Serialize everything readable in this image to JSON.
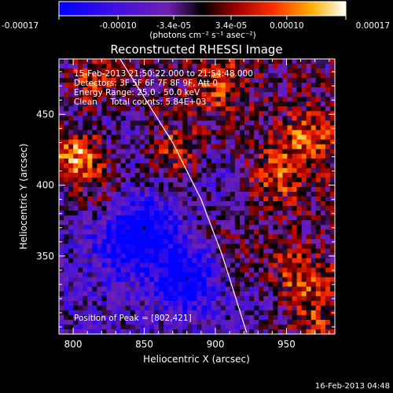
{
  "colorbar": {
    "tick_labels": [
      "-0.00017",
      "-0.00010",
      "-3.4e-05",
      "3.4e-05",
      "0.00010",
      "0.00017"
    ],
    "unit_label": "(photons cm⁻² s⁻¹ asec⁻²)",
    "range": [
      -0.00017,
      0.00017
    ]
  },
  "chart_data": {
    "type": "heatmap",
    "title": "Reconstructed RHESSI Image",
    "xlabel": "Heliocentric X (arcsec)",
    "ylabel": "Heliocentric Y (arcsec)",
    "xlim": [
      790,
      984
    ],
    "ylim": [
      295,
      489
    ],
    "x_ticks": [
      800,
      850,
      900,
      950
    ],
    "y_ticks": [
      350,
      400,
      450
    ],
    "annotations": [
      "15-Feb-2013 21:50:22.000 to 21:54:48.000",
      "Detectors: 3F 5F 6F 7F 8F 9F, Att 0",
      "Energy Range: 25.0 - 50.0 keV",
      "Clean     Total counts: 5.84E+03"
    ],
    "peak_label": "Position of Peak = [802,421]",
    "peak_position": [
      802,
      421
    ],
    "limb_curve": [
      [
        833,
        489
      ],
      [
        870,
        430
      ],
      [
        890,
        390
      ],
      [
        905,
        350
      ],
      [
        922,
        296
      ]
    ],
    "bright_regions": [
      {
        "x": 802,
        "y": 421,
        "level": 0.00017
      },
      {
        "x": 813,
        "y": 473,
        "level": 0.00012
      },
      {
        "x": 868,
        "y": 420,
        "level": 8e-05
      },
      {
        "x": 965,
        "y": 432,
        "level": 0.0001
      },
      {
        "x": 942,
        "y": 405,
        "level": 8e-05
      },
      {
        "x": 902,
        "y": 470,
        "level": 7e-05
      },
      {
        "x": 958,
        "y": 335,
        "level": 8e-05
      },
      {
        "x": 972,
        "y": 305,
        "level": 6e-05
      },
      {
        "x": 820,
        "y": 395,
        "level": 6e-05
      }
    ],
    "dark_regions": [
      {
        "x": 850,
        "y": 370,
        "level": -0.00012
      },
      {
        "x": 880,
        "y": 335,
        "level": -0.00014
      },
      {
        "x": 835,
        "y": 355,
        "level": -8e-05
      },
      {
        "x": 900,
        "y": 405,
        "level": -6e-05
      },
      {
        "x": 930,
        "y": 315,
        "level": -5e-05
      }
    ],
    "markers": [
      [
        850,
        370
      ],
      [
        880,
        334
      ]
    ]
  },
  "footer": {
    "date": "16-Feb-2013 04:48"
  }
}
